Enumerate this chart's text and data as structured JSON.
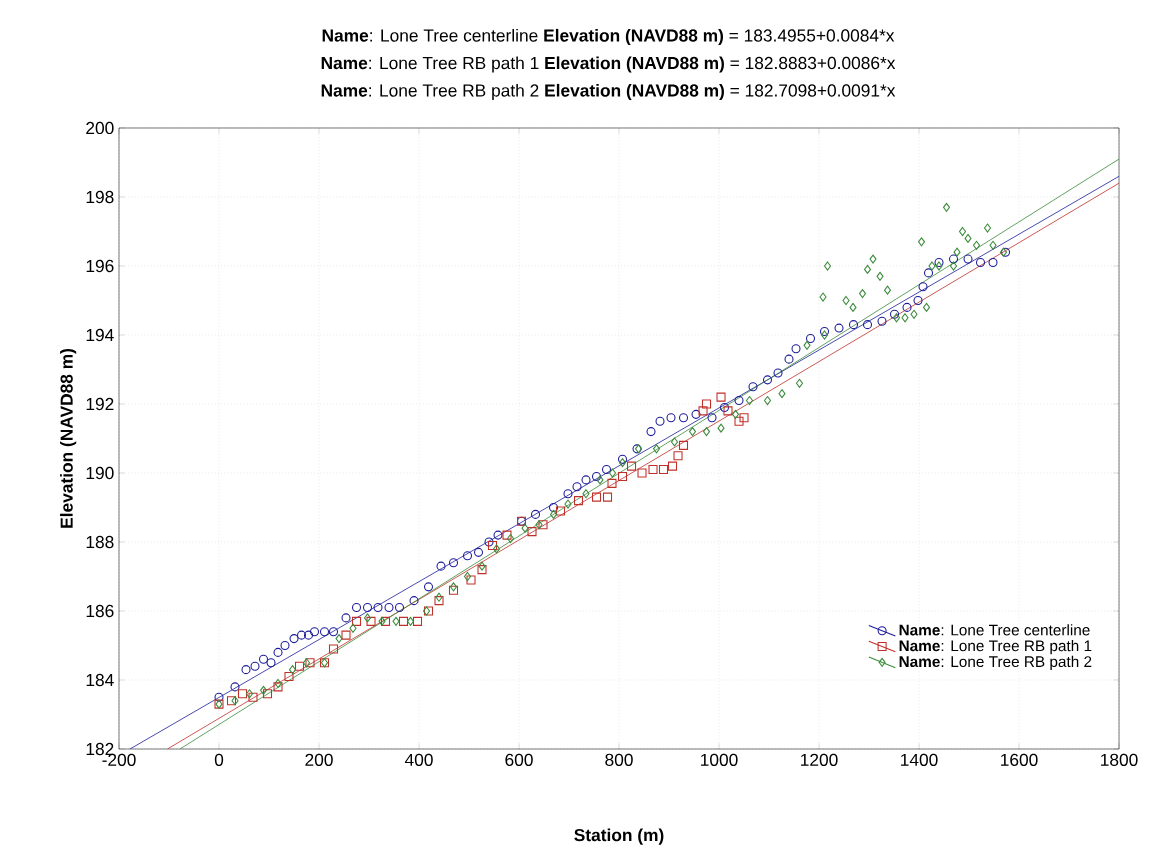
{
  "chart_data": {
    "type": "scatter",
    "annotations": [
      "**Name**: Lone Tree centerline **Elevation (NAVD88 m)** = 183.4955+0.0084*x",
      "**Name**: Lone Tree RB path 1 **Elevation (NAVD88 m)** = 182.8883+0.0086*x",
      "**Name**: Lone Tree RB path 2 **Elevation (NAVD88 m)** = 182.7098+0.0091*x"
    ],
    "xlabel": "Station (m)",
    "ylabel": "Elevation (NAVD88 m)",
    "xlim": [
      -200,
      1800
    ],
    "ylim": [
      182,
      200
    ],
    "xticks": [
      -200,
      0,
      200,
      400,
      600,
      800,
      1000,
      1200,
      1400,
      1600,
      1800
    ],
    "yticks": [
      182,
      184,
      186,
      188,
      190,
      192,
      194,
      196,
      198,
      200
    ],
    "grid": true,
    "legend": "bottom right",
    "series": [
      {
        "name": "**Name**: Lone Tree centerline",
        "marker": "circle",
        "color": "#1c1c9a",
        "x": [
          0,
          32,
          54,
          72,
          89,
          104,
          118,
          132,
          150,
          165,
          179,
          191,
          211,
          229,
          254,
          275,
          297,
          318,
          340,
          361,
          390,
          419,
          444,
          469,
          497,
          519,
          540,
          558,
          605,
          633,
          669,
          698,
          716,
          734,
          755,
          775,
          807,
          836,
          864,
          882,
          904,
          929,
          954,
          986,
          1011,
          1040,
          1068,
          1097,
          1118,
          1140,
          1154,
          1183,
          1211,
          1240,
          1269,
          1297,
          1326,
          1351,
          1376,
          1398,
          1408,
          1419,
          1440,
          1469,
          1498,
          1523,
          1548,
          1573
        ],
        "values": [
          183.5,
          183.8,
          184.3,
          184.4,
          184.6,
          184.5,
          184.8,
          185.0,
          185.2,
          185.3,
          185.3,
          185.4,
          185.4,
          185.4,
          185.8,
          186.1,
          186.1,
          186.1,
          186.1,
          186.1,
          186.3,
          186.7,
          187.3,
          187.4,
          187.6,
          187.7,
          188.0,
          188.2,
          188.6,
          188.8,
          189.0,
          189.4,
          189.6,
          189.8,
          189.9,
          190.1,
          190.4,
          190.7,
          191.2,
          191.5,
          191.6,
          191.6,
          191.7,
          191.6,
          191.9,
          192.1,
          192.5,
          192.7,
          192.9,
          193.3,
          193.6,
          193.9,
          194.1,
          194.2,
          194.3,
          194.3,
          194.4,
          194.6,
          194.8,
          195.0,
          195.4,
          195.8,
          196.1,
          196.2,
          196.2,
          196.1,
          196.1,
          196.4
        ]
      },
      {
        "name": "**Name**: Lone Tree RB path 1",
        "marker": "square",
        "color": "#c0302a",
        "x": [
          0,
          25,
          47,
          68,
          97,
          118,
          140,
          161,
          182,
          211,
          229,
          254,
          275,
          304,
          333,
          369,
          397,
          419,
          440,
          469,
          504,
          526,
          547,
          576,
          605,
          626,
          648,
          683,
          719,
          755,
          777,
          786,
          807,
          825,
          846,
          868,
          889,
          907,
          918,
          929,
          968,
          975,
          1004,
          1018,
          1040,
          1050
        ],
        "values": [
          183.3,
          183.4,
          183.6,
          183.5,
          183.6,
          183.8,
          184.1,
          184.4,
          184.5,
          184.5,
          184.9,
          185.3,
          185.7,
          185.7,
          185.7,
          185.7,
          185.7,
          186.0,
          186.3,
          186.6,
          186.9,
          187.2,
          187.9,
          188.2,
          188.6,
          188.3,
          188.5,
          188.9,
          189.2,
          189.3,
          189.3,
          189.7,
          189.9,
          190.2,
          190.0,
          190.1,
          190.1,
          190.2,
          190.5,
          190.8,
          191.8,
          192.0,
          192.2,
          191.8,
          191.5,
          191.6
        ]
      },
      {
        "name": "**Name**: Lone Tree RB path 2",
        "marker": "diamond",
        "color": "#3a8a3a",
        "x": [
          0,
          32,
          61,
          89,
          118,
          147,
          175,
          211,
          240,
          268,
          297,
          326,
          354,
          383,
          415,
          440,
          469,
          497,
          526,
          555,
          583,
          612,
          640,
          669,
          698,
          734,
          762,
          787,
          807,
          839,
          875,
          911,
          947,
          975,
          1004,
          1033,
          1061,
          1097,
          1126,
          1161,
          1176,
          1211,
          1208,
          1217,
          1254,
          1268,
          1287,
          1297,
          1308,
          1322,
          1337,
          1355,
          1372,
          1390,
          1415,
          1405,
          1426,
          1440,
          1455,
          1469,
          1476,
          1487,
          1498,
          1515,
          1537,
          1548,
          1569
        ],
        "values": [
          183.3,
          183.4,
          183.6,
          183.7,
          183.9,
          184.3,
          184.5,
          184.5,
          185.2,
          185.5,
          185.8,
          185.7,
          185.7,
          185.7,
          186.0,
          186.4,
          186.7,
          187.0,
          187.3,
          187.8,
          188.1,
          188.4,
          188.5,
          188.8,
          189.1,
          189.4,
          189.8,
          190.0,
          190.3,
          190.7,
          190.7,
          190.9,
          191.2,
          191.2,
          191.3,
          191.7,
          192.1,
          192.1,
          192.3,
          192.6,
          193.7,
          194.0,
          195.1,
          196.0,
          195.0,
          194.8,
          195.2,
          195.9,
          196.2,
          195.7,
          195.3,
          194.5,
          194.5,
          194.6,
          194.8,
          196.7,
          196.0,
          196.0,
          197.7,
          196.0,
          196.4,
          197.0,
          196.8,
          196.6,
          197.1,
          196.6,
          196.4
        ]
      },
      {
        "type": "line",
        "color": "#1c1c9a",
        "x": [
          -178,
          1800
        ],
        "values": [
          182.0,
          198.6
        ]
      },
      {
        "type": "line",
        "color": "#c0302a",
        "x": [
          -103,
          1800
        ],
        "values": [
          182.0,
          198.4
        ]
      },
      {
        "type": "line",
        "color": "#3a8a3a",
        "x": [
          -78,
          1800
        ],
        "values": [
          182.0,
          199.1
        ]
      }
    ]
  }
}
